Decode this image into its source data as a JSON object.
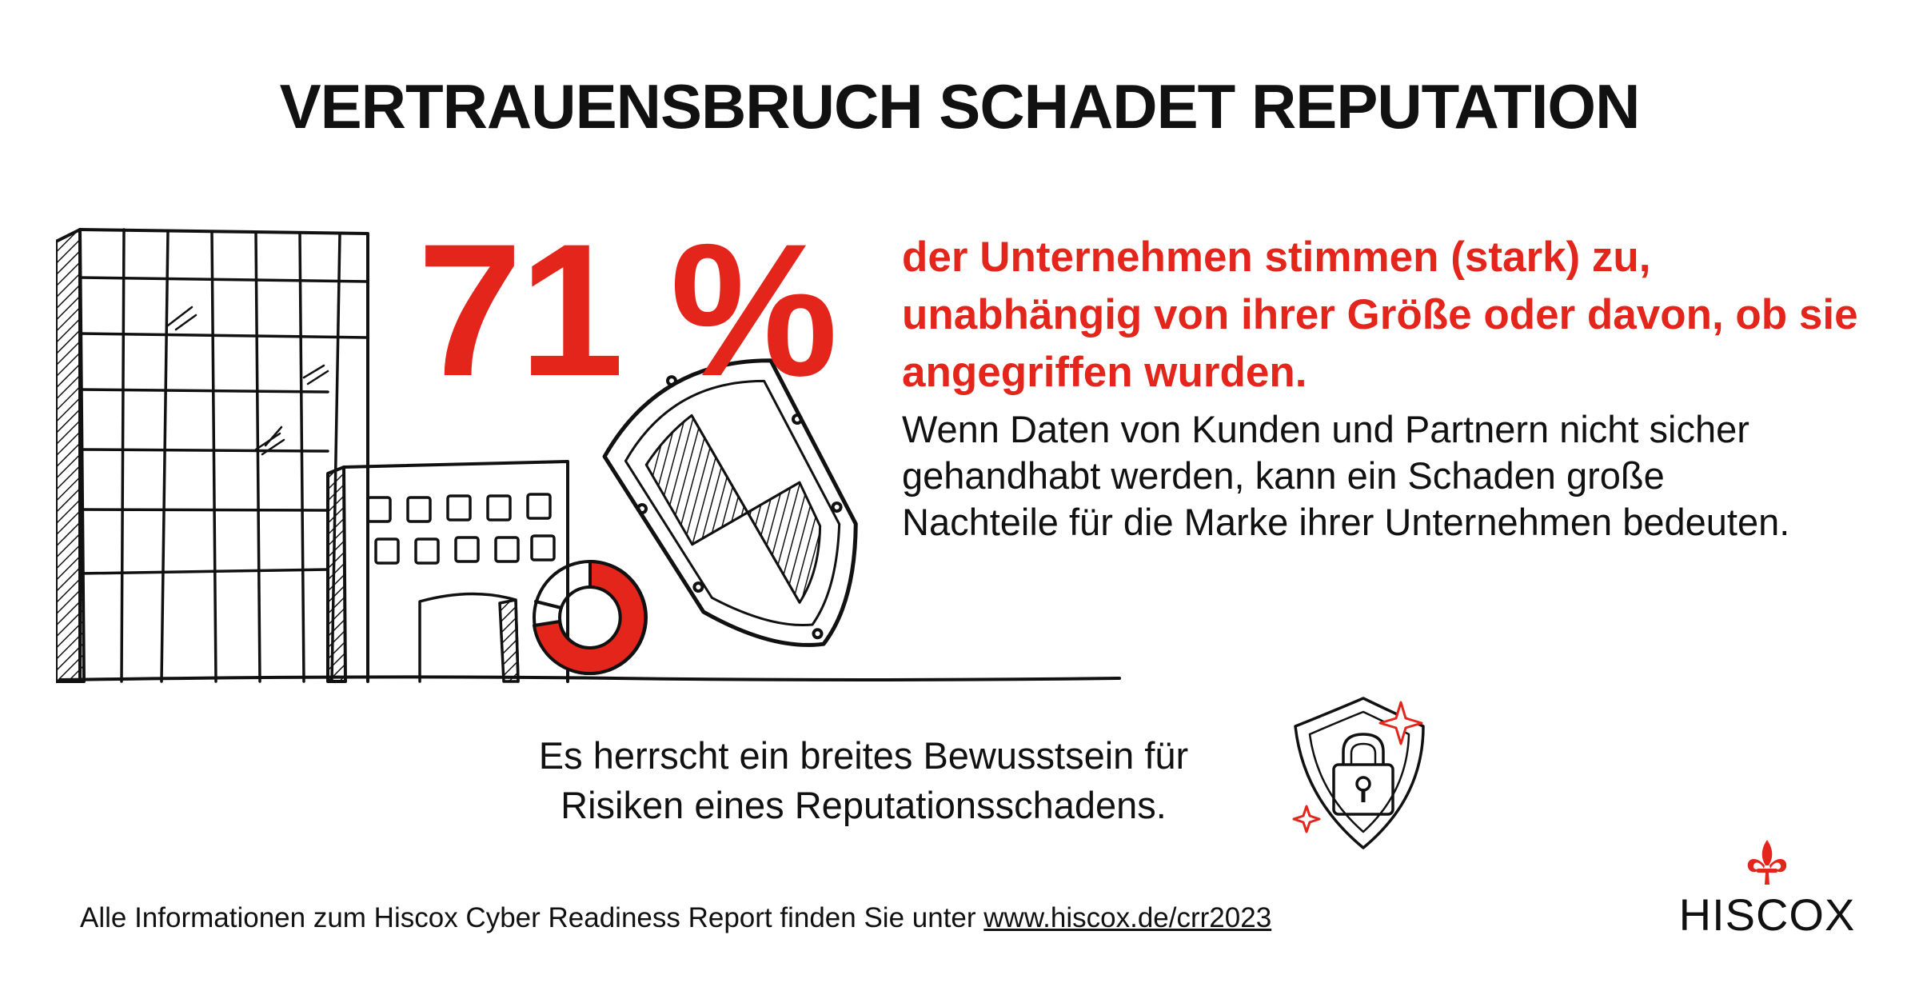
{
  "title": "VERTRAUENSBRUCH SCHADET REPUTATION",
  "stat": {
    "value": "71 %",
    "lead": "der Unternehmen stimmen (stark) zu, unabhängig von ihrer Größe oder davon, ob sie angegriffen wurden.",
    "body": "Wenn Daten von Kunden und Partnern nicht sicher gehandhabt werden, kann ein Schaden große Nachteile für die Marke ihrer Unternehmen bedeuten."
  },
  "awareness": {
    "line1": "Es herrscht ein breites Bewusstsein für",
    "line2": "Risiken eines Reputationsschadens."
  },
  "footer": {
    "text": "Alle Informationen zum Hiscox Cyber Readiness Report finden Sie unter ",
    "link": "www.hiscox.de/crr2023"
  },
  "logo": {
    "name": "HISCOX"
  },
  "colors": {
    "accent": "#e3251b",
    "ink": "#111111",
    "background": "#ffffff"
  },
  "icons": [
    "buildings-illustration",
    "donut-chart-icon",
    "shield-icon",
    "lock-shield-icon",
    "sparkle-icon",
    "fleur-de-lis-icon"
  ]
}
